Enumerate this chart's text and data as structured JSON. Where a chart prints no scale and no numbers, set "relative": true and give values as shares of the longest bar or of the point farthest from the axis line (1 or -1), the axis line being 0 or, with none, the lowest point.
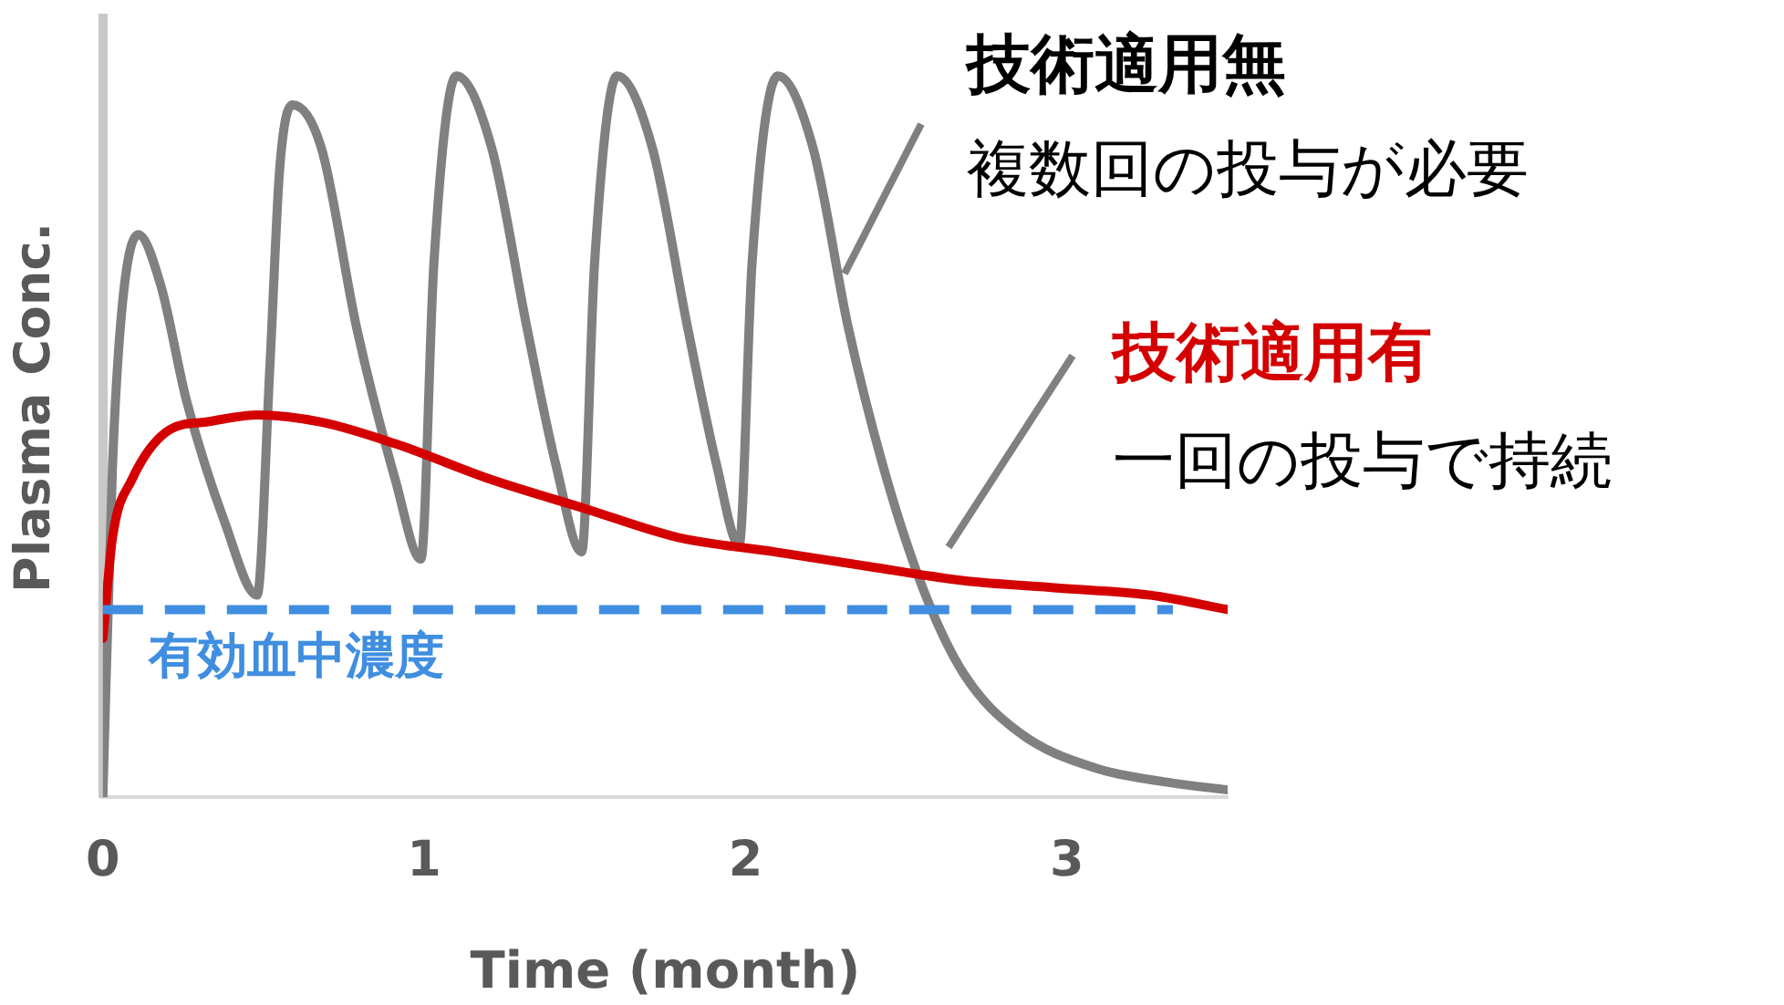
{
  "chart_data": {
    "type": "line",
    "relative": true,
    "xlabel": "Time (month)",
    "ylabel": "Plasma Conc.",
    "xlim": [
      0,
      3.5
    ],
    "xticks": [
      0,
      1,
      2,
      3
    ],
    "grid": false,
    "legend": false,
    "marker": "none",
    "series": [
      {
        "color": "#808080",
        "x": [
          0,
          0.03,
          0.06,
          0.11,
          0.18,
          0.26,
          0.38,
          0.48,
          0.52,
          0.55,
          0.59,
          0.68,
          0.79,
          0.91,
          0.99,
          1.03,
          1.1,
          1.21,
          1.32,
          1.41,
          1.49,
          1.53,
          1.6,
          1.71,
          1.82,
          1.91,
          1.98,
          2.02,
          2.1,
          2.21,
          2.32,
          2.44,
          2.56,
          2.68,
          2.85,
          3.09,
          3.32,
          3.5
        ],
        "values": [
          0,
          0.46,
          0.68,
          0.78,
          0.71,
          0.55,
          0.38,
          0.28,
          0.6,
          0.87,
          0.96,
          0.9,
          0.65,
          0.44,
          0.33,
          0.74,
          1,
          0.9,
          0.65,
          0.46,
          0.34,
          0.74,
          1,
          0.9,
          0.65,
          0.46,
          0.35,
          0.74,
          1,
          0.9,
          0.65,
          0.44,
          0.28,
          0.17,
          0.09,
          0.04,
          0.02,
          0.01
        ]
      },
      {
        "color": "#d40000",
        "x": [
          0,
          0.03,
          0.09,
          0.21,
          0.32,
          0.48,
          0.68,
          0.91,
          1.21,
          1.5,
          1.79,
          2.09,
          2.38,
          2.68,
          2.97,
          3.26,
          3.5
        ],
        "values": [
          0.22,
          0.36,
          0.44,
          0.51,
          0.52,
          0.53,
          0.52,
          0.49,
          0.44,
          0.4,
          0.36,
          0.34,
          0.32,
          0.3,
          0.29,
          0.28,
          0.26
        ]
      }
    ],
    "ref_lines": [
      {
        "axis": "y",
        "value": 0.26,
        "label": "有効血中濃度",
        "color": "#3f8ee0",
        "line_style": "dashed"
      }
    ],
    "annotations": [
      "技術適用無",
      "複数回の投与が必要",
      "技術適用有",
      "一回の投与で持続"
    ]
  }
}
